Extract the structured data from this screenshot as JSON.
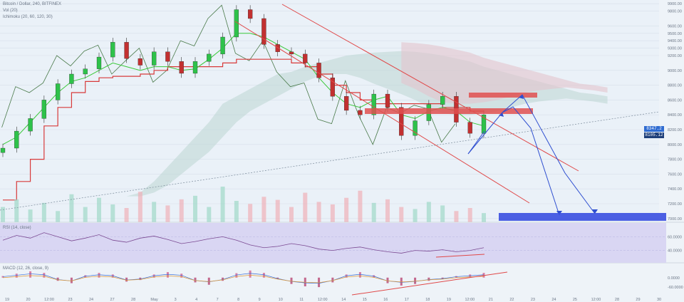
{
  "chart_data": [
    {
      "type": "candlestick",
      "title": "Bitcoin / Dollar, 240, BITFINEX",
      "indicators_legend": [
        "Vol (20)",
        "Ichimoku (20, 60, 120, 30)"
      ],
      "x_tick_labels": [
        "19",
        "20",
        "12:00",
        "23",
        "24",
        "27",
        "28",
        "May",
        "3",
        "4",
        "7",
        "8",
        "9",
        "10",
        "11",
        "12:00",
        "14",
        "15",
        "16",
        "17",
        "18",
        "19",
        "12:00",
        "21",
        "22",
        "23",
        "24",
        "25",
        "12:00",
        "28",
        "29",
        "30"
      ],
      "y_tick_labels": [
        "9900.00",
        "9800.00",
        "9600.00",
        "9500.00",
        "9400.00",
        "9300.00",
        "9200.00",
        "9000.00",
        "8800.00",
        "8600.00",
        "8400.00",
        "8200.00",
        "8000.00",
        "7800.00",
        "7600.00",
        "7400.00",
        "7200.00",
        "7000.00"
      ],
      "y_range": [
        6950,
        9950
      ],
      "current_price_labels": [
        "8347.2",
        "8105.12"
      ],
      "series": [
        {
          "name": "Close",
          "values": [
            7950,
            8180,
            8350,
            8600,
            8820,
            8950,
            9020,
            9180,
            9380,
            9160,
            9070,
            9250,
            9120,
            8960,
            9120,
            9220,
            9450,
            9820,
            9700,
            9350,
            9250,
            9220,
            9100,
            8900,
            8650,
            8460,
            8400,
            8680,
            8500,
            8120,
            8320,
            8540,
            8650,
            8300,
            8150,
            8400
          ]
        },
        {
          "name": "Tenkan",
          "values": [
            8000,
            8100,
            8300,
            8500,
            8700,
            8850,
            8900,
            9000,
            9100,
            9050,
            9000,
            9050,
            9050,
            9000,
            9020,
            9150,
            9300,
            9500,
            9500,
            9450,
            9350,
            9250,
            9150,
            8900,
            8700,
            8550,
            8500,
            8600,
            8650,
            8400,
            8350,
            8450,
            8500,
            8450,
            8300,
            8250
          ]
        },
        {
          "name": "Kijun",
          "values": [
            7250,
            7500,
            7800,
            8250,
            8500,
            8700,
            8850,
            8900,
            8920,
            8920,
            8950,
            9000,
            9050,
            9050,
            9050,
            9050,
            9100,
            9150,
            9150,
            9150,
            9150,
            9100,
            9050,
            8950,
            8800,
            8700,
            8600,
            8550,
            8550,
            8550,
            8550,
            8550,
            8500,
            8500,
            8450,
            8450
          ]
        },
        {
          "name": "Cloud upper",
          "values": [
            7300,
            7350,
            7500,
            7700,
            7900,
            8100,
            8300,
            8550,
            8650,
            8750,
            8850,
            8950,
            8980,
            9050,
            9100,
            9150,
            9200,
            9220,
            9240,
            9250,
            9260,
            9250,
            9230,
            9200,
            9160,
            9120,
            9050,
            9000,
            8950,
            8900,
            8850,
            8800,
            8750,
            8700,
            8680,
            8650
          ]
        },
        {
          "name": "Cloud lower",
          "values": [
            7300,
            7300,
            7350,
            7450,
            7600,
            7750,
            7900,
            8100,
            8300,
            8450,
            8550,
            8650,
            8750,
            8850,
            8920,
            8950,
            8950,
            8900,
            8820,
            8750,
            8680,
            8600,
            8500,
            8420,
            8400,
            8400,
            8420,
            8450,
            8500,
            8550,
            8580,
            8600,
            8620,
            8600,
            8580,
            8550
          ]
        }
      ],
      "volume": [
        30,
        45,
        25,
        38,
        22,
        55,
        30,
        48,
        35,
        28,
        60,
        40,
        33,
        45,
        52,
        30,
        70,
        42,
        36,
        50,
        44,
        30,
        58,
        40,
        35,
        48,
        62,
        38,
        45,
        30,
        26,
        40,
        33,
        22,
        28,
        18
      ],
      "annotations": [
        "descending channel (red lines)",
        "resistance zones (red boxes)",
        "projected path (blue arrows)",
        "target zone (blue box)",
        "dotted trend line"
      ]
    },
    {
      "type": "line",
      "title": "RSI (14, close)",
      "y_tick_labels": [
        "60.0000",
        "40.0000"
      ],
      "y_range": [
        25,
        75
      ],
      "values": [
        55,
        62,
        58,
        66,
        60,
        54,
        58,
        63,
        55,
        52,
        58,
        61,
        56,
        50,
        53,
        57,
        60,
        55,
        48,
        44,
        46,
        50,
        47,
        42,
        40,
        43,
        45,
        41,
        38,
        36,
        40,
        39,
        41,
        38,
        40,
        44
      ]
    },
    {
      "type": "bar",
      "title": "MACD (12, 26, close, 9)",
      "y_tick_labels": [
        "0.0000",
        "-60.0000"
      ],
      "y_range": [
        -100,
        80
      ],
      "values": [
        10,
        25,
        40,
        30,
        -20,
        -35,
        15,
        30,
        20,
        -25,
        -15,
        20,
        35,
        25,
        -30,
        -45,
        -20,
        28,
        45,
        30,
        -10,
        -40,
        -55,
        -60,
        -30,
        20,
        35,
        15,
        -35,
        -50,
        -40,
        -20,
        -10,
        10,
        20,
        30
      ]
    }
  ]
}
